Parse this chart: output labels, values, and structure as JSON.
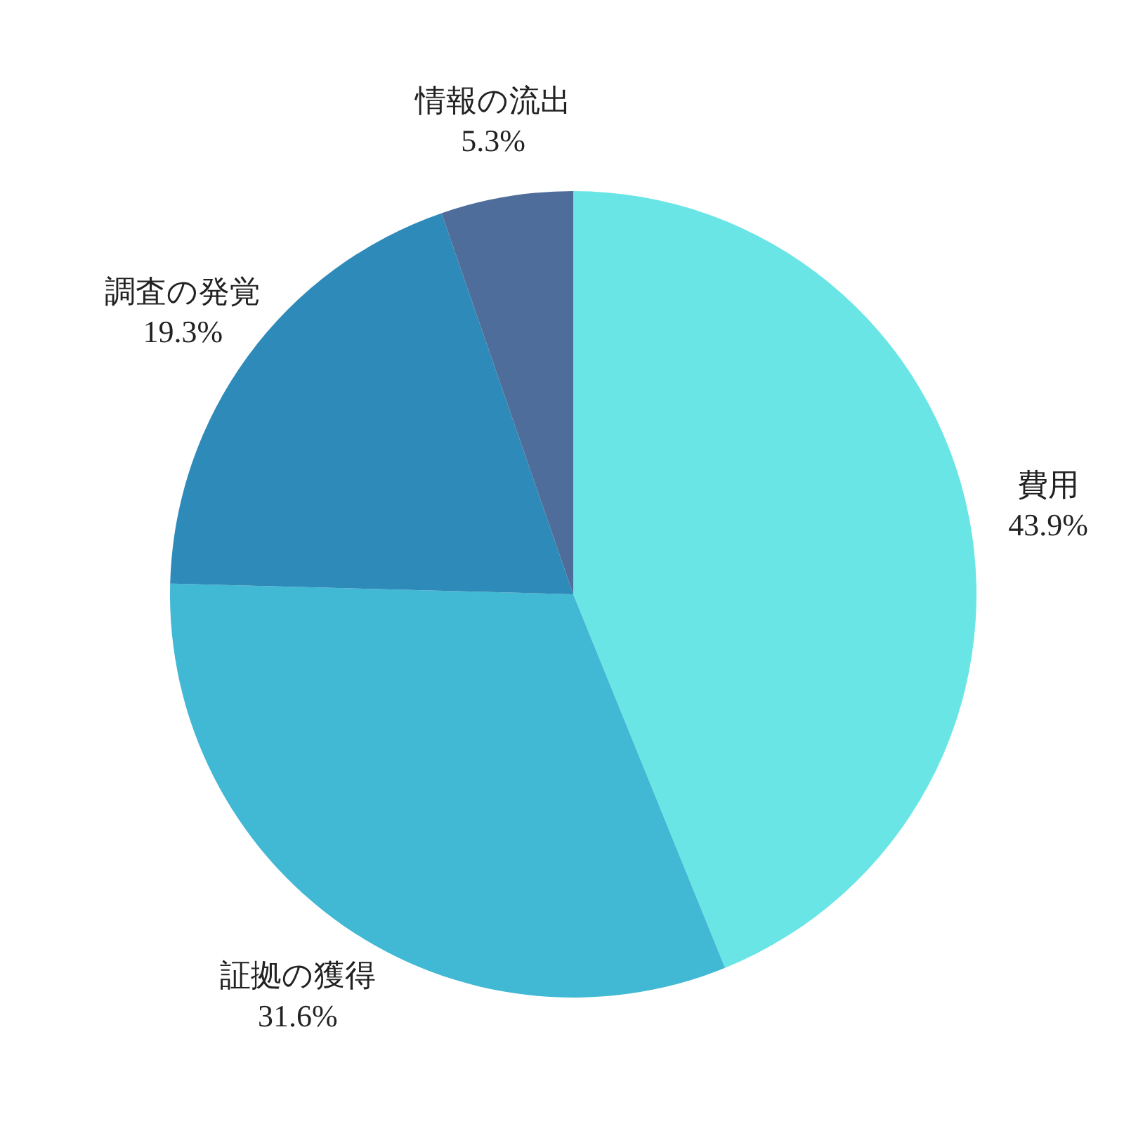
{
  "chart_data": {
    "type": "pie",
    "categories": [
      "費用",
      "証拠の獲得",
      "調査の発覚",
      "情報の流出"
    ],
    "values": [
      43.9,
      31.6,
      19.3,
      5.3
    ],
    "value_labels": [
      "43.9%",
      "31.6%",
      "19.3%",
      "5.3%"
    ],
    "colors": [
      "#6ae5e6",
      "#41b8d4",
      "#2e8ab8",
      "#4e6d9a"
    ]
  }
}
